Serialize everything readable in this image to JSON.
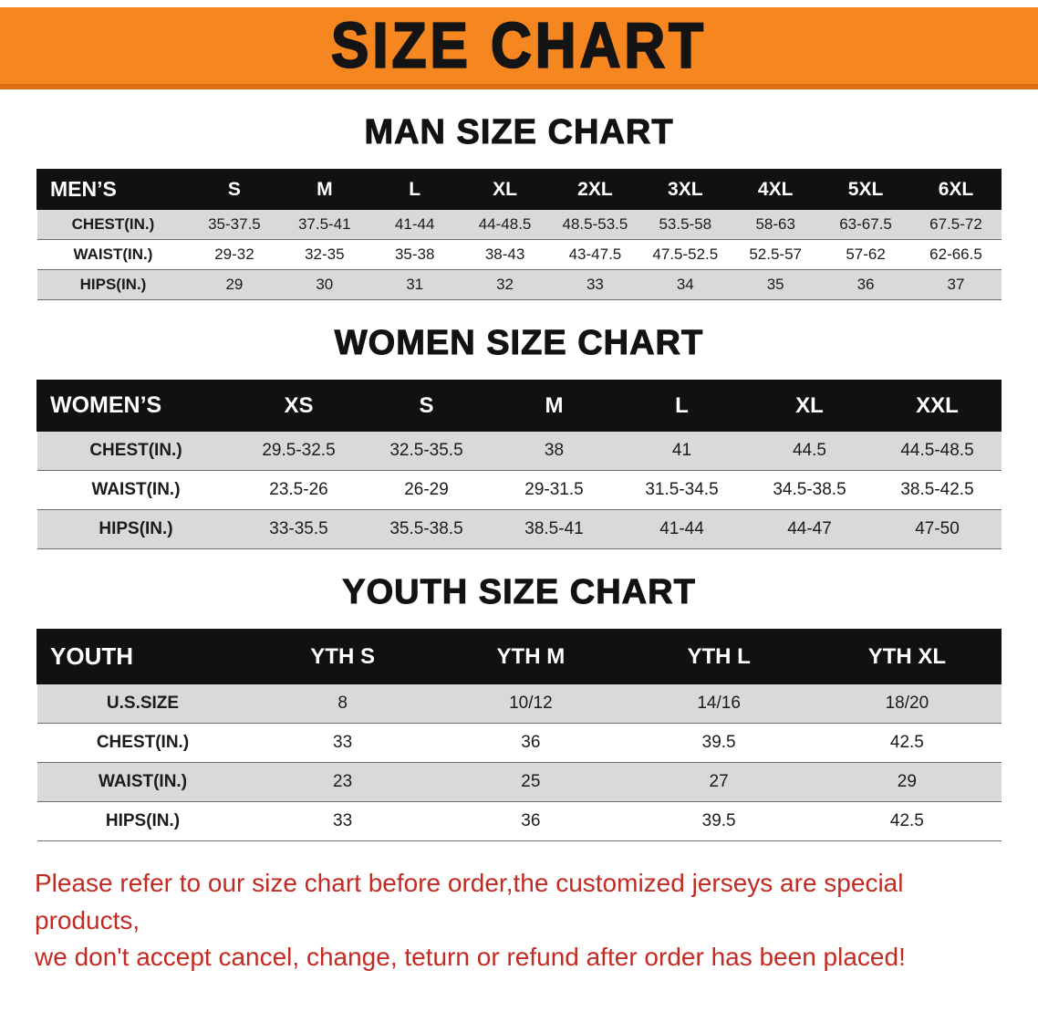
{
  "banner": {
    "title": "SIZE CHART",
    "bg_color": "#f6861f",
    "bg_edge_color": "#dd7011",
    "text_color": "#141414"
  },
  "colors": {
    "table_header_bg": "#111111",
    "table_header_text": "#ffffff",
    "row_stripe": "#d9d9d9",
    "note_red": "#c22b23"
  },
  "sections": {
    "men": {
      "heading": "MAN SIZE CHART",
      "table": {
        "corner_label": "MEN’S",
        "columns": [
          "S",
          "M",
          "L",
          "XL",
          "2XL",
          "3XL",
          "4XL",
          "5XL",
          "6XL"
        ],
        "rows": [
          {
            "label": "CHEST(IN.)",
            "values": [
              "35-37.5",
              "37.5-41",
              "41-44",
              "44-48.5",
              "48.5-53.5",
              "53.5-58",
              "58-63",
              "63-67.5",
              "67.5-72"
            ]
          },
          {
            "label": "WAIST(IN.)",
            "values": [
              "29-32",
              "32-35",
              "35-38",
              "38-43",
              "43-47.5",
              "47.5-52.5",
              "52.5-57",
              "57-62",
              "62-66.5"
            ]
          },
          {
            "label": "HIPS(IN.)",
            "values": [
              "29",
              "30",
              "31",
              "32",
              "33",
              "34",
              "35",
              "36",
              "37"
            ]
          }
        ]
      }
    },
    "women": {
      "heading": "WOMEN SIZE CHART",
      "table": {
        "corner_label": "WOMEN’S",
        "columns": [
          "XS",
          "S",
          "M",
          "L",
          "XL",
          "XXL"
        ],
        "rows": [
          {
            "label": "CHEST(IN.)",
            "values": [
              "29.5-32.5",
              "32.5-35.5",
              "38",
              "41",
              "44.5",
              "44.5-48.5"
            ]
          },
          {
            "label": "WAIST(IN.)",
            "values": [
              "23.5-26",
              "26-29",
              "29-31.5",
              "31.5-34.5",
              "34.5-38.5",
              "38.5-42.5"
            ]
          },
          {
            "label": "HIPS(IN.)",
            "values": [
              "33-35.5",
              "35.5-38.5",
              "38.5-41",
              "41-44",
              "44-47",
              "47-50"
            ]
          }
        ]
      }
    },
    "youth": {
      "heading": "YOUTH SIZE CHART",
      "table": {
        "corner_label": "YOUTH",
        "columns": [
          "YTH S",
          "YTH M",
          "YTH L",
          "YTH XL"
        ],
        "rows": [
          {
            "label": "U.S.SIZE",
            "values": [
              "8",
              "10/12",
              "14/16",
              "18/20"
            ]
          },
          {
            "label": "CHEST(IN.)",
            "values": [
              "33",
              "36",
              "39.5",
              "42.5"
            ]
          },
          {
            "label": "WAIST(IN.)",
            "values": [
              "23",
              "25",
              "27",
              "29"
            ]
          },
          {
            "label": "HIPS(IN.)",
            "values": [
              "33",
              "36",
              "39.5",
              "42.5"
            ]
          }
        ]
      }
    }
  },
  "footer_note": {
    "lines": [
      "Please refer to our size chart before order,the customized jerseys are special products,",
      "we don't accept cancel, change, teturn or refund after order has been placed!"
    ]
  }
}
